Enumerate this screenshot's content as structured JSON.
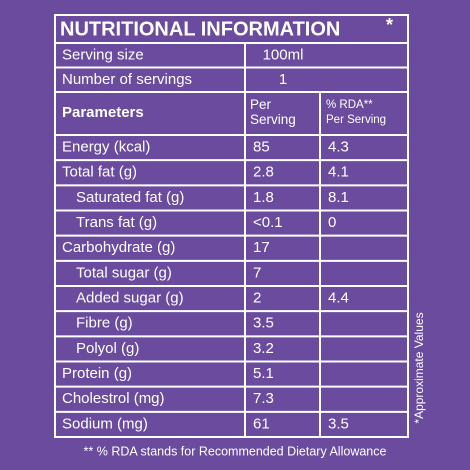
{
  "header": {
    "title": "NUTRITIONAL INFORMATION",
    "title_mark": "*"
  },
  "serving": [
    [
      "Serving size",
      "100ml"
    ],
    [
      "Number of servings",
      "1"
    ]
  ],
  "table": {
    "columns": [
      "Parameters",
      "Per\nServing",
      "% RDA**\nPer Serving"
    ],
    "rows": [
      {
        "label": "Energy (kcal)",
        "per_serving": "85",
        "rda": "4.3"
      },
      {
        "label": "Total fat (g)",
        "per_serving": "2.8",
        "rda": "4.1"
      },
      {
        "label": "Saturated fat (g)",
        "per_serving": "1.8",
        "rda": "8.1",
        "level": 1
      },
      {
        "label": "Trans fat (g)",
        "per_serving": "<0.1",
        "rda": "0",
        "level": 1
      },
      {
        "label": "Carbohydrate (g)",
        "per_serving": "17",
        "rda": null
      },
      {
        "label": "Total sugar (g)",
        "per_serving": "7",
        "rda": null,
        "level": 1
      },
      {
        "label": "Added sugar (g)",
        "per_serving": "2",
        "rda": "4.4",
        "level": 1
      },
      {
        "label": "Fibre (g)",
        "per_serving": "3.5",
        "rda": null,
        "level": 1
      },
      {
        "label": "Polyol (g)",
        "per_serving": "3.2",
        "rda": null,
        "level": 1
      },
      {
        "label": "Protein (g)",
        "per_serving": "5.1",
        "rda": null
      },
      {
        "label": "Cholestrol (mg)",
        "per_serving": "7.3",
        "rda": null
      },
      {
        "label": "Sodium (mg)",
        "per_serving": "61",
        "rda": "3.5"
      }
    ]
  },
  "side_note": "*Approximate Values",
  "footnote": "** % RDA stands for Recommended Dietary Allowance"
}
